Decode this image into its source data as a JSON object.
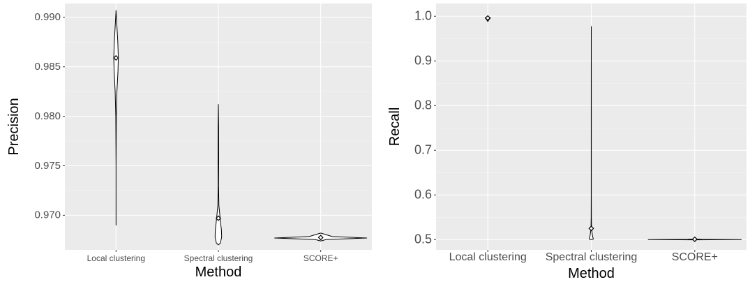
{
  "chart_data": [
    {
      "type": "violin",
      "xlabel": "Method",
      "ylabel": "Precision",
      "categories": [
        "Local clustering",
        "Spectral clustering",
        "SCORE+"
      ],
      "ylim": [
        0.9665,
        0.9914
      ],
      "yticks": [
        0.97,
        0.975,
        0.98,
        0.985,
        0.99
      ],
      "ytick_labels": [
        "0.970",
        "0.975",
        "0.980",
        "0.985",
        "0.990"
      ],
      "tick_font": 12,
      "grid": true,
      "legend": "none",
      "violins": [
        {
          "category": "Local clustering",
          "min": 0.969,
          "max": 0.9907,
          "point": 0.9859,
          "profile": [
            [
              0.969,
              0.0
            ],
            [
              0.975,
              0.0
            ],
            [
              0.98,
              0.01
            ],
            [
              0.9825,
              0.035
            ],
            [
              0.9845,
              0.075
            ],
            [
              0.9859,
              0.09
            ],
            [
              0.9875,
              0.07
            ],
            [
              0.9895,
              0.025
            ],
            [
              0.9907,
              0.0
            ]
          ]
        },
        {
          "category": "Spectral clustering",
          "min": 0.967,
          "max": 0.9812,
          "point": 0.9697,
          "profile": [
            [
              0.967,
              0.0
            ],
            [
              0.9672,
              0.08
            ],
            [
              0.9678,
              0.13
            ],
            [
              0.9685,
              0.12
            ],
            [
              0.9692,
              0.09
            ],
            [
              0.9697,
              0.07
            ],
            [
              0.971,
              0.02
            ],
            [
              0.973,
              0.008
            ],
            [
              0.9755,
              0.012
            ],
            [
              0.979,
              0.01
            ],
            [
              0.9812,
              0.0
            ]
          ]
        },
        {
          "category": "SCORE+",
          "min": 0.9674,
          "max": 0.9682,
          "point": 0.96775,
          "horizontal_extent": 1.0,
          "profile": [
            [
              0.9674,
              0.0
            ],
            [
              0.96755,
              0.12
            ],
            [
              0.9677,
              1.0
            ],
            [
              0.96785,
              0.25
            ],
            [
              0.9682,
              0.0
            ]
          ]
        }
      ]
    },
    {
      "type": "violin",
      "xlabel": "Method",
      "ylabel": "Recall",
      "categories": [
        "Local clustering",
        "Spectral clustering",
        "SCORE+"
      ],
      "ylim": [
        0.477,
        1.0285
      ],
      "yticks": [
        0.5,
        0.6,
        0.7,
        0.8,
        0.9,
        1.0
      ],
      "ytick_labels": [
        "0.5",
        "0.6",
        "0.7",
        "0.8",
        "0.9",
        "1.0"
      ],
      "tick_font": 15,
      "grid": true,
      "legend": "none",
      "violins": [
        {
          "category": "Local clustering",
          "min": 0.988,
          "max": 0.999,
          "point": 0.996,
          "profile": [
            [
              0.988,
              0.0
            ],
            [
              0.991,
              0.03
            ],
            [
              0.994,
              0.07
            ],
            [
              0.996,
              0.1
            ],
            [
              0.998,
              0.06
            ],
            [
              0.999,
              0.0
            ]
          ]
        },
        {
          "category": "Spectral clustering",
          "min": 0.5,
          "max": 0.977,
          "point": 0.525,
          "profile": [
            [
              0.5,
              0.0
            ],
            [
              0.501,
              0.08
            ],
            [
              0.508,
              0.05
            ],
            [
              0.516,
              0.03
            ],
            [
              0.525,
              0.012
            ],
            [
              0.55,
              0.004
            ],
            [
              0.6,
              0.002
            ],
            [
              0.8,
              0.002
            ],
            [
              0.977,
              0.0
            ]
          ]
        },
        {
          "category": "SCORE+",
          "min": 0.5,
          "max": 0.5018,
          "point": 0.5008,
          "horizontal_extent": 1.0,
          "profile": [
            [
              0.4995,
              0.0
            ],
            [
              0.5,
              1.0
            ],
            [
              0.5006,
              0.15
            ],
            [
              0.5012,
              0.05
            ],
            [
              0.5018,
              0.0
            ]
          ]
        }
      ]
    }
  ]
}
